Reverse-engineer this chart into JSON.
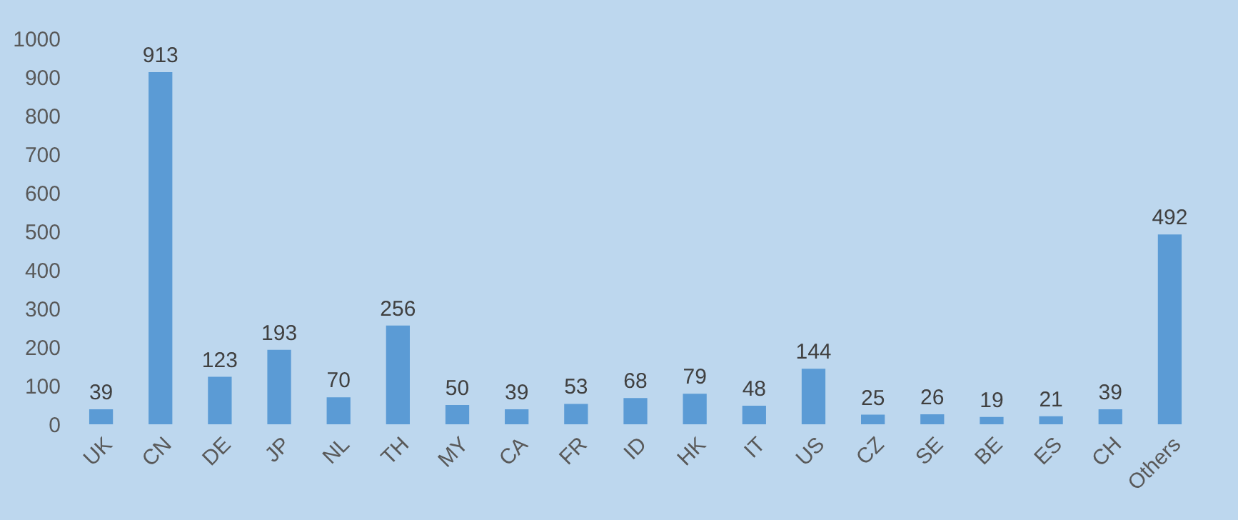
{
  "chart_data": {
    "type": "bar",
    "categories": [
      "UK",
      "CN",
      "DE",
      "JP",
      "NL",
      "TH",
      "MY",
      "CA",
      "FR",
      "ID",
      "HK",
      "IT",
      "US",
      "CZ",
      "SE",
      "BE",
      "ES",
      "CH",
      "Others"
    ],
    "values": [
      39,
      913,
      123,
      193,
      70,
      256,
      50,
      39,
      53,
      68,
      79,
      48,
      144,
      25,
      26,
      19,
      21,
      39,
      492
    ],
    "color": "#5b9bd5",
    "ylim": [
      0,
      1000
    ],
    "yticks": [
      0,
      100,
      200,
      300,
      400,
      500,
      600,
      700,
      800,
      900,
      1000
    ],
    "grid": false,
    "data_labels": true
  }
}
